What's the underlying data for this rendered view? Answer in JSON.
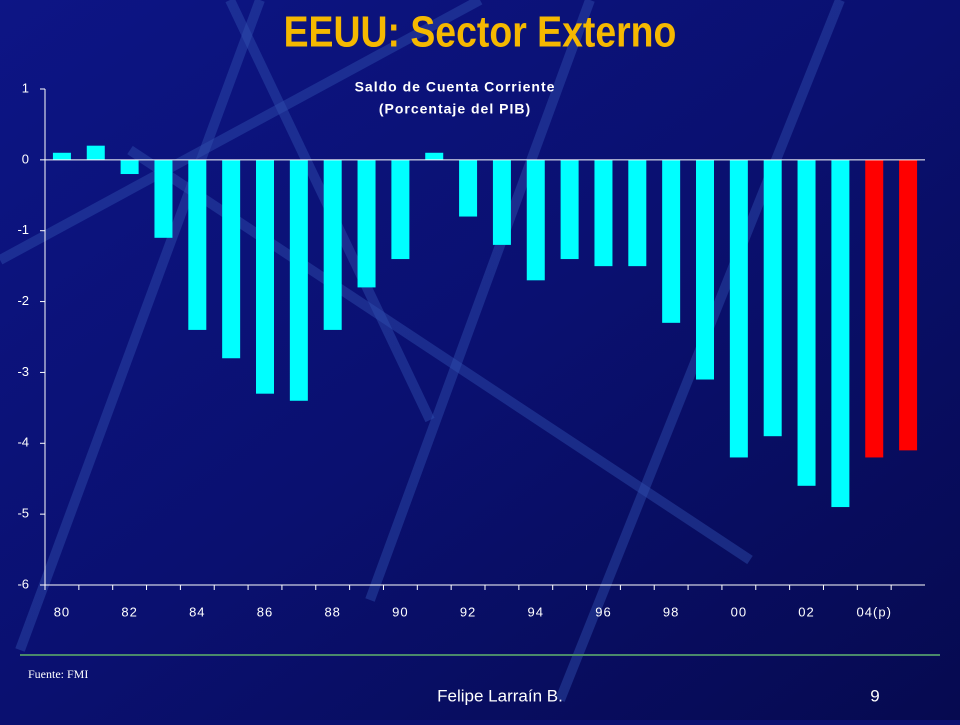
{
  "chart_data": {
    "type": "bar",
    "slide_title": "EEUU: Sector Externo",
    "title": "Saldo de Cuenta Corriente",
    "subtitle": "(Porcentaje del PIB)",
    "categories": [
      "80",
      null,
      "82",
      null,
      "84",
      null,
      "86",
      null,
      "88",
      null,
      "90",
      null,
      "92",
      null,
      "94",
      null,
      "96",
      null,
      "98",
      null,
      "00",
      null,
      "02",
      null,
      "04(p)",
      null
    ],
    "values": [
      0.1,
      0.2,
      -0.2,
      -1.1,
      -2.4,
      -2.8,
      -3.3,
      -3.4,
      -2.4,
      -1.8,
      -1.4,
      0.1,
      -0.8,
      -1.2,
      -1.7,
      -1.4,
      -1.5,
      -1.5,
      -2.3,
      -3.1,
      -4.2,
      -3.9,
      -4.6,
      -4.9,
      -4.2,
      -4.1
    ],
    "colors": [
      "#00ffff",
      "#00ffff",
      "#00ffff",
      "#00ffff",
      "#00ffff",
      "#00ffff",
      "#00ffff",
      "#00ffff",
      "#00ffff",
      "#00ffff",
      "#00ffff",
      "#00ffff",
      "#00ffff",
      "#00ffff",
      "#00ffff",
      "#00ffff",
      "#00ffff",
      "#00ffff",
      "#00ffff",
      "#00ffff",
      "#00ffff",
      "#00ffff",
      "#00ffff",
      "#00ffff",
      "#ff0000",
      "#ff0000"
    ],
    "ylim": [
      -6,
      1
    ],
    "yticks": [
      -6,
      -5,
      -4,
      -3,
      -2,
      -1,
      0,
      1
    ],
    "source": "Fuente: FMI",
    "author": "Felipe Larraín B.",
    "page": "9"
  }
}
